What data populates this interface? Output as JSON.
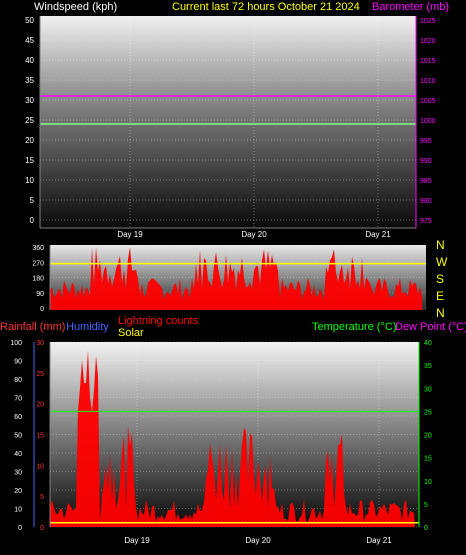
{
  "header": {
    "windspeed_label": "Windspeed (kph)",
    "title": "Current last 72 hours October 21 2024",
    "barometer_label": "Barometer (mb)"
  },
  "wind_dir_scale": [
    "N",
    "W",
    "S",
    "E",
    "N"
  ],
  "bottom_header": {
    "rainfall_label": "Rainfall (mm)",
    "humidity_label": "Humidity",
    "lightning_label": "Lightning counts",
    "solar_label": "Solar",
    "temperature_label": "Temperature (°C)",
    "dewpoint_label": "Dew Point (°C)"
  },
  "colors": {
    "windspeed_label": "#ffffff",
    "title": "#ffff00",
    "barometer": "#ff00ff",
    "wind": "#80ff80",
    "direction": "#ff0000",
    "direction_ref": "#ffff00",
    "rainfall": "#ff3333",
    "humidity": "#4466ff",
    "lightning": "#ff0000",
    "solar": "#ffff00",
    "temperature": "#00ff00",
    "dewpoint": "#ff00ff"
  },
  "chart_data": [
    {
      "type": "line",
      "name": "top-panel",
      "x_ticks": [
        "Day 19",
        "Day 20",
        "Day 21"
      ],
      "left_axis": {
        "label": "Windspeed (kph)",
        "ticks": [
          0,
          5,
          10,
          15,
          20,
          25,
          30,
          35,
          40,
          45,
          50
        ],
        "ylim": [
          0,
          50
        ]
      },
      "right_axis": {
        "label": "Barometer (mb)",
        "ticks": [
          975,
          980,
          985,
          990,
          995,
          1000,
          1005,
          1010,
          1015,
          1020,
          1025
        ],
        "ylim": [
          975,
          1025
        ]
      },
      "series": [
        {
          "name": "Barometer (mb)",
          "axis": "right",
          "values": [
            1006,
            1006
          ]
        },
        {
          "name": "Windspeed (kph)",
          "axis": "left",
          "values": [
            24,
            24
          ]
        }
      ],
      "grid": true
    },
    {
      "type": "area",
      "name": "direction-panel",
      "y_ticks": [
        0,
        90,
        180,
        270,
        360
      ],
      "ylim": [
        0,
        360
      ],
      "reference_line": 262,
      "grid": true
    },
    {
      "type": "area",
      "name": "bottom-panel",
      "x_ticks": [
        "Day 19",
        "Day 20",
        "Day 21"
      ],
      "humidity_axis": {
        "ticks": [
          0,
          10,
          20,
          30,
          40,
          50,
          60,
          70,
          80,
          90,
          100
        ],
        "ylim": [
          0,
          100
        ]
      },
      "rainfall_axis": {
        "ticks": [
          0,
          5,
          10,
          15,
          20,
          25,
          30
        ],
        "ylim": [
          0,
          30
        ]
      },
      "temperature_axis": {
        "ticks": [
          0,
          5,
          10,
          15,
          20,
          25,
          30,
          35,
          40
        ],
        "ylim": [
          0,
          40
        ]
      },
      "series": [
        {
          "name": "Temperature (°C)",
          "axis": "temperature",
          "values": [
            25,
            25
          ]
        },
        {
          "name": "Solar",
          "values": [
            0.5,
            0.5
          ]
        }
      ],
      "grid": true
    }
  ]
}
